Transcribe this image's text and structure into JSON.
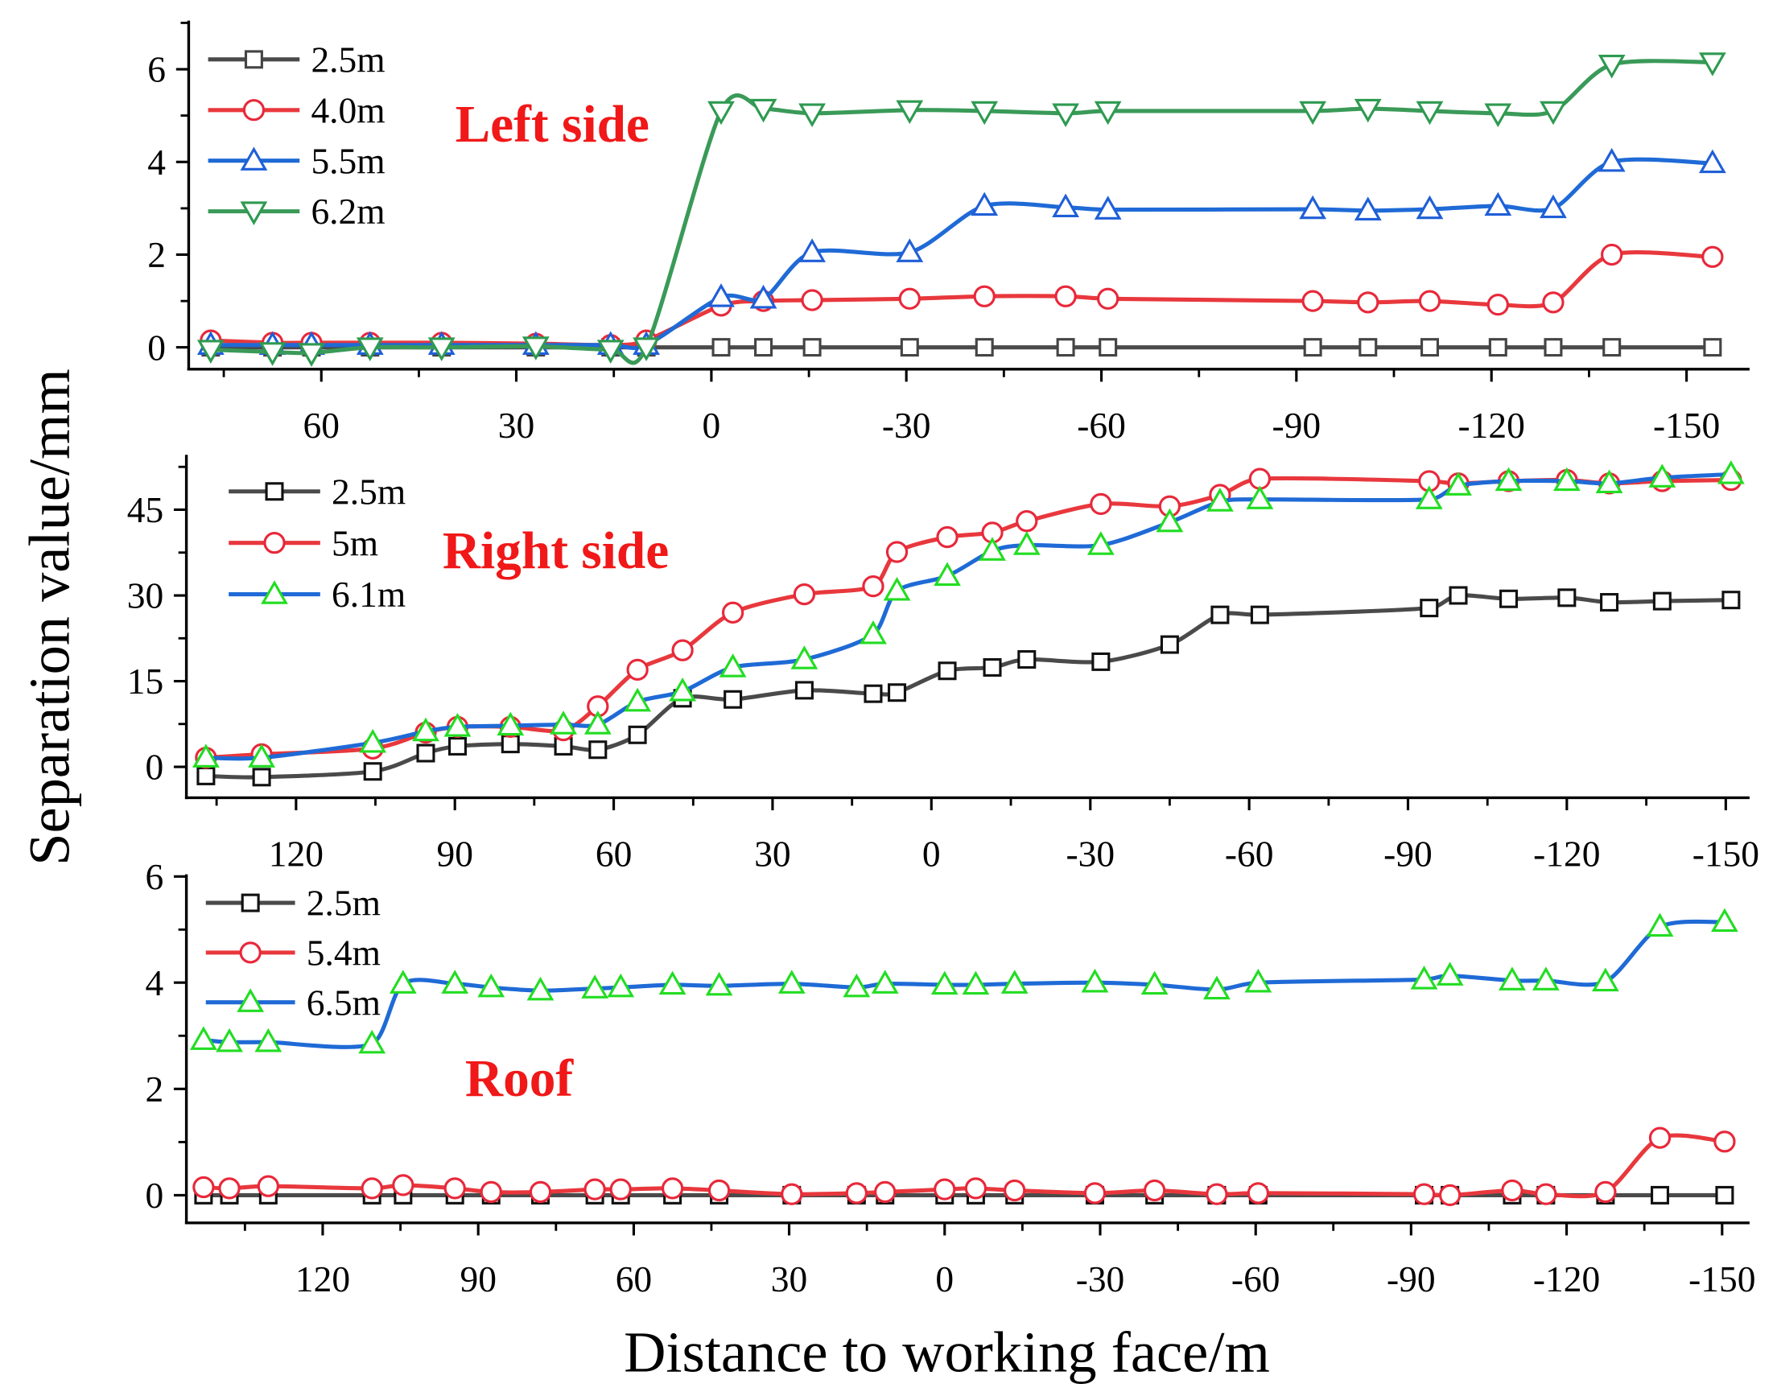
{
  "chart_data": {
    "type": "line",
    "ylabel": "Separation value/mm",
    "xlabel": "Distance to working face/m",
    "panels": [
      {
        "annotation": "Left side",
        "annotation_color": "#f01818",
        "legend": "upper-left",
        "xlim": [
          80.4,
          -159.7
        ],
        "ylim": [
          -0.47,
          7.05
        ],
        "xticks": [
          60,
          30,
          0,
          -30,
          -60,
          -90,
          -120,
          -150
        ],
        "xtick_labels": [
          "60",
          "30",
          "0",
          "-30",
          "-60",
          "-90",
          "-120",
          "-150"
        ],
        "xminor_step": 15,
        "yticks": [
          0,
          2,
          4,
          6
        ],
        "ytick_labels": [
          "0",
          "2",
          "4",
          "6"
        ],
        "yminor_step": 1,
        "x": [
          77,
          67.5,
          61.5,
          52.5,
          41.5,
          27,
          15.5,
          10,
          -1.5,
          -8,
          -15.5,
          -30.5,
          -42,
          -54.5,
          -61,
          -92.5,
          -101,
          -110.5,
          -121,
          -129.5,
          -138.5,
          -154
        ],
        "series": [
          {
            "name": "2.5m",
            "marker": "square",
            "line_color": "#4a4a4a",
            "marker_color": "#444444",
            "y": [
              0,
              0,
              0,
              0,
              0,
              0,
              0,
              0,
              0,
              0,
              0,
              0,
              0,
              0,
              0,
              0,
              0,
              0,
              0,
              0,
              0,
              0
            ]
          },
          {
            "name": "4.0m",
            "marker": "circle",
            "line_color": "#e8383d",
            "marker_color": "#e8283a",
            "y": [
              0.15,
              0.1,
              0.1,
              0.1,
              0.1,
              0.08,
              0.05,
              0.15,
              0.9,
              1.0,
              1.02,
              1.05,
              1.1,
              1.1,
              1.05,
              1.0,
              0.97,
              1.0,
              0.92,
              0.97,
              2.0,
              1.95
            ]
          },
          {
            "name": "5.5m",
            "marker": "triangle-up",
            "line_color": "#1f6ad6",
            "marker_color": "#1f5fd8",
            "y": [
              0.05,
              0.05,
              0.05,
              0.05,
              0.05,
              0.05,
              0.05,
              0.05,
              1.08,
              1.05,
              2.05,
              2.05,
              3.05,
              3.02,
              2.97,
              2.98,
              2.95,
              2.98,
              3.05,
              3.0,
              4.0,
              3.97
            ]
          },
          {
            "name": "6.2m",
            "marker": "triangle-down",
            "line_color": "#3a9a58",
            "marker_color": "#2e9a50",
            "y": [
              -0.05,
              -0.1,
              -0.12,
              0,
              0,
              0.02,
              -0.05,
              0,
              5.1,
              5.15,
              5.05,
              5.12,
              5.1,
              5.05,
              5.1,
              5.1,
              5.15,
              5.1,
              5.05,
              5.1,
              6.1,
              6.15
            ]
          }
        ]
      },
      {
        "annotation": "Right side",
        "annotation_color": "#f01818",
        "legend": "upper-left",
        "xlim": [
          140.7,
          -154.5
        ],
        "ylim": [
          -5.4,
          54.6
        ],
        "xticks": [
          120,
          90,
          60,
          30,
          0,
          -30,
          -60,
          -90,
          -120,
          -150
        ],
        "xtick_labels": [
          "120",
          "90",
          "60",
          "30",
          "0",
          "-30",
          "-60",
          "-90",
          "-120",
          "-150"
        ],
        "xminor_step": 15,
        "yticks": [
          0,
          15,
          30,
          45
        ],
        "ytick_labels": [
          "0",
          "15",
          "30",
          "45"
        ],
        "yminor_step": 7.5,
        "x": [
          137,
          126.5,
          105.5,
          95.5,
          89.5,
          79.5,
          69.5,
          63,
          55.5,
          47,
          37.5,
          24,
          11,
          6.5,
          -3,
          -11.5,
          -18,
          -32,
          -45,
          -54.5,
          -62,
          -94,
          -99.5,
          -109,
          -120,
          -128,
          -138,
          -151
        ],
        "series": [
          {
            "name": "2.5m",
            "marker": "square",
            "line_color": "#4a4a4a",
            "marker_color": "#111111",
            "y": [
              -1.6,
              -1.8,
              -0.8,
              2.4,
              3.6,
              4.0,
              3.6,
              3.0,
              5.6,
              12.0,
              11.8,
              13.4,
              12.8,
              13.0,
              16.8,
              17.4,
              18.8,
              18.4,
              21.4,
              26.6,
              26.6,
              27.8,
              30.0,
              29.4,
              29.6,
              28.8,
              29.0,
              29.2
            ]
          },
          {
            "name": "5m",
            "marker": "circle",
            "line_color": "#e8383d",
            "marker_color": "#e8283a",
            "y": [
              1.6,
              2.2,
              3.2,
              6.0,
              7.0,
              7.0,
              6.4,
              10.6,
              17.0,
              20.4,
              27.0,
              30.2,
              31.6,
              37.6,
              40.2,
              41.0,
              43.0,
              46.0,
              45.6,
              47.6,
              50.4,
              50.0,
              49.6,
              50.0,
              50.2,
              49.6,
              50.0,
              50.2
            ]
          },
          {
            "name": "6.1m",
            "marker": "triangle-up",
            "line_color": "#1f6ad6",
            "marker_color": "#22dd22",
            "y": [
              1.6,
              1.6,
              4.2,
              6.2,
              7.0,
              7.2,
              7.4,
              7.4,
              11.4,
              13.2,
              17.4,
              18.8,
              23.2,
              30.8,
              33.4,
              37.8,
              38.8,
              38.8,
              42.8,
              46.4,
              46.8,
              46.8,
              49.2,
              50.0,
              50.0,
              49.6,
              50.6,
              51.2
            ]
          }
        ]
      },
      {
        "annotation": "Roof",
        "annotation_color": "#f01818",
        "legend": "upper-left",
        "xlim": [
          146.3,
          -155.3
        ],
        "ylim": [
          -0.52,
          6.04
        ],
        "xticks": [
          120,
          90,
          60,
          30,
          0,
          -30,
          -60,
          -90,
          -120,
          -150
        ],
        "xtick_labels": [
          "120",
          "90",
          "60",
          "30",
          "0",
          "-30",
          "-60",
          "-90",
          "-120",
          "-150"
        ],
        "xminor_step": 15,
        "yticks": [
          0,
          2,
          4,
          6
        ],
        "ytick_labels": [
          "0",
          "2",
          "4",
          "6"
        ],
        "yminor_step": 1,
        "x": [
          143,
          138,
          130.5,
          110.5,
          104.5,
          94.5,
          87.5,
          78,
          67.5,
          62.5,
          52.5,
          43.5,
          29.5,
          17,
          11.5,
          0,
          -6,
          -13.5,
          -29,
          -40.5,
          -52.5,
          -60.5,
          -92.5,
          -97.5,
          -109.5,
          -116,
          -127.5,
          -138,
          -150.5
        ],
        "series": [
          {
            "name": "2.5m",
            "marker": "square",
            "line_color": "#4a4a4a",
            "marker_color": "#111111",
            "y": [
              0,
              0,
              0,
              0,
              0,
              0,
              0,
              0,
              0,
              0,
              0,
              0,
              0,
              0,
              0,
              0,
              0,
              0,
              0,
              0,
              0,
              0,
              0,
              0,
              0,
              0,
              0,
              0,
              0
            ]
          },
          {
            "name": "5.4m",
            "marker": "circle",
            "line_color": "#e8383d",
            "marker_color": "#e8283a",
            "y": [
              0.15,
              0.13,
              0.17,
              0.13,
              0.19,
              0.13,
              0.06,
              0.06,
              0.11,
              0.11,
              0.13,
              0.09,
              0.02,
              0.04,
              0.06,
              0.11,
              0.13,
              0.09,
              0.04,
              0.09,
              0.02,
              0.04,
              0.02,
              0.0,
              0.09,
              0.02,
              0.06,
              1.08,
              1.01
            ]
          },
          {
            "name": "6.5m",
            "marker": "triangle-up",
            "line_color": "#1f6ad6",
            "marker_color": "#22dd22",
            "y": [
              2.92,
              2.88,
              2.88,
              2.85,
              3.98,
              3.98,
              3.91,
              3.85,
              3.89,
              3.91,
              3.96,
              3.94,
              3.98,
              3.91,
              3.98,
              3.96,
              3.96,
              3.98,
              4.0,
              3.96,
              3.87,
              4.0,
              4.06,
              4.13,
              4.04,
              4.04,
              4.02,
              5.05,
              5.14
            ]
          }
        ]
      }
    ]
  }
}
